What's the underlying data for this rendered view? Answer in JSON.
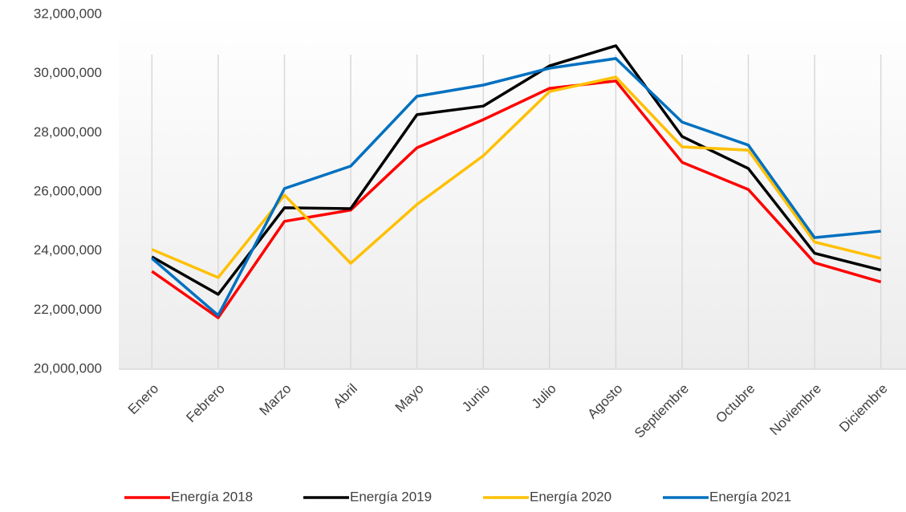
{
  "chart_data": {
    "type": "line",
    "categories": [
      "Enero",
      "Febrero",
      "Marzo",
      "Abril",
      "Mayo",
      "Junio",
      "Julio",
      "Agosto",
      "Septiembre",
      "Octubre",
      "Noviembre",
      "Diciembre"
    ],
    "series": [
      {
        "name": "Energía 2018",
        "color": "#ff0000",
        "values": [
          23310000,
          21740000,
          25000000,
          25380000,
          27490000,
          28440000,
          29500000,
          29750000,
          27000000,
          26080000,
          23600000,
          22950000
        ]
      },
      {
        "name": "Energía 2019",
        "color": "#000000",
        "values": [
          23800000,
          22530000,
          25460000,
          25430000,
          28610000,
          28900000,
          30260000,
          30940000,
          27870000,
          26790000,
          23920000,
          23350000
        ]
      },
      {
        "name": "Energía 2020",
        "color": "#ffc000",
        "values": [
          24050000,
          23100000,
          25890000,
          23580000,
          25570000,
          27220000,
          29390000,
          29880000,
          27520000,
          27410000,
          24300000,
          23750000
        ]
      },
      {
        "name": "Energía 2021",
        "color": "#0070c0",
        "values": [
          23750000,
          21820000,
          26110000,
          26870000,
          29230000,
          29610000,
          30180000,
          30510000,
          28360000,
          27580000,
          24450000,
          24670000
        ]
      }
    ],
    "ylim": [
      20000000,
      32000000
    ],
    "yticks": [
      {
        "value": 20000000,
        "label": "20,000,000"
      },
      {
        "value": 22000000,
        "label": "22,000,000"
      },
      {
        "value": 24000000,
        "label": "24,000,000"
      },
      {
        "value": 26000000,
        "label": "26,000,000"
      },
      {
        "value": 28000000,
        "label": "28,000,000"
      },
      {
        "value": 30000000,
        "label": "30,000,000"
      },
      {
        "value": 32000000,
        "label": "32,000,000"
      }
    ],
    "legend": "bottom",
    "grid": "x"
  }
}
